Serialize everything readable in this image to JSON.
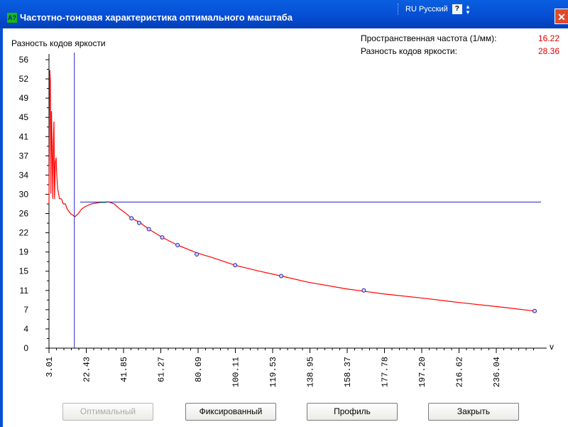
{
  "window": {
    "title": "Частотно-тоновая характеристика оптимального масштаба",
    "icon_text": "A?",
    "language": "RU Русский",
    "help_glyph": "?",
    "close_glyph": "✕"
  },
  "readout": {
    "freq_label": "Пространственная частота (1/мм):",
    "freq_value": "16.22",
    "diff_label": "Разность кодов яркости:",
    "diff_value": "28.36"
  },
  "buttons": {
    "optimal": "Оптимальный",
    "fixed": "Фиксированный",
    "profile": "Профиль",
    "close": "Закрыть"
  },
  "chart_data": {
    "type": "line",
    "ylabel": "Разность кодов яркости",
    "xlabel": "v",
    "y_ticks": [
      "0",
      "4",
      "7",
      "11",
      "15",
      "19",
      "22",
      "26",
      "30",
      "34",
      "37",
      "41",
      "45",
      "49",
      "52",
      "56"
    ],
    "y_range": [
      0,
      56
    ],
    "x_ticks": [
      "3.01",
      "22.43",
      "41.85",
      "61.27",
      "80.69",
      "100.11",
      "119.53",
      "138.95",
      "158.37",
      "177.78",
      "197.20",
      "216.62",
      "236.04"
    ],
    "x_range": [
      3.01,
      259.34
    ],
    "colors": {
      "curve": "#ff0000",
      "cursor": "#2020cc",
      "peak": "#40d040",
      "markers": "#2020aa"
    },
    "cursor": {
      "x": 16.22,
      "y": 28.36
    },
    "curve": [
      [
        3.0,
        28
      ],
      [
        3.4,
        54
      ],
      [
        3.7,
        52
      ],
      [
        4.0,
        30
      ],
      [
        4.3,
        46
      ],
      [
        4.6,
        40
      ],
      [
        5.0,
        29
      ],
      [
        5.3,
        40
      ],
      [
        5.6,
        44
      ],
      [
        5.9,
        29
      ],
      [
        6.3,
        36
      ],
      [
        6.7,
        37
      ],
      [
        7.0,
        34
      ],
      [
        7.5,
        31
      ],
      [
        8.0,
        30
      ],
      [
        8.5,
        29
      ],
      [
        9.5,
        29
      ],
      [
        10.5,
        28
      ],
      [
        11.5,
        28
      ],
      [
        12.5,
        27
      ],
      [
        13.5,
        26.5
      ],
      [
        14.5,
        26
      ],
      [
        15.5,
        25.8
      ],
      [
        16.5,
        25.5
      ],
      [
        18,
        26
      ],
      [
        20,
        27
      ],
      [
        22,
        27.5
      ],
      [
        25,
        28
      ],
      [
        28,
        28.2
      ],
      [
        31,
        28.3
      ],
      [
        34,
        28.4
      ],
      [
        37,
        28
      ],
      [
        40,
        27
      ],
      [
        43,
        26.2
      ],
      [
        46,
        25.2
      ],
      [
        50,
        24.5
      ],
      [
        55,
        23.1
      ],
      [
        62,
        21.5
      ],
      [
        70,
        20
      ],
      [
        80,
        18.5
      ],
      [
        88,
        17.6
      ],
      [
        100,
        16.1
      ],
      [
        112,
        15
      ],
      [
        124,
        14
      ],
      [
        138,
        12.8
      ],
      [
        158,
        11.5
      ],
      [
        178,
        10.5
      ],
      [
        198,
        9.7
      ],
      [
        218,
        8.8
      ],
      [
        238,
        8.0
      ],
      [
        256,
        7.2
      ]
    ],
    "markers": [
      [
        46,
        25.2
      ],
      [
        50,
        24.3
      ],
      [
        55,
        23.1
      ],
      [
        62,
        21.5
      ],
      [
        70,
        20
      ],
      [
        80,
        18.2
      ],
      [
        100,
        16.1
      ],
      [
        124,
        14
      ],
      [
        167,
        11.2
      ],
      [
        256,
        7.2
      ]
    ],
    "peak": [
      31,
      28.3
    ]
  }
}
